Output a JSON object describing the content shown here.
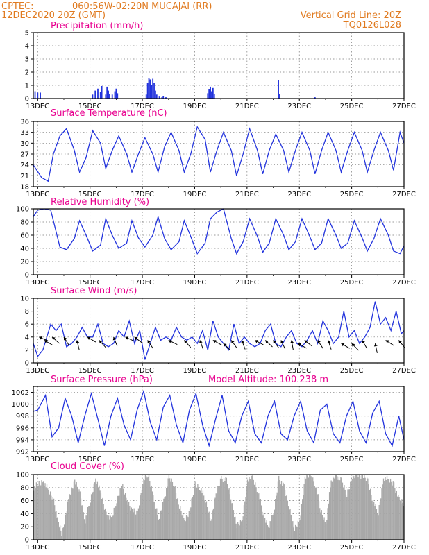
{
  "header": {
    "source": "CPTEC:",
    "location": "060:56W-02:20N  MUCAJAI (RR)",
    "datetime": "12DEC2020 20Z (GMT)",
    "grid_line": "Vertical Grid Line: 20Z",
    "model": "TQ0126L028"
  },
  "colors": {
    "header": "#e07a1f",
    "title": "#e8008f",
    "series": "#2233dd",
    "cloud": "#a8a8a8"
  },
  "x_axis": {
    "start_day": 12.833,
    "end_day": 27.0,
    "tick_days": [
      13,
      15,
      17,
      19,
      21,
      23,
      25,
      27
    ],
    "tick_labels": [
      "13DEC",
      "15DEC",
      "17DEC",
      "19DEC",
      "21DEC",
      "23DEC",
      "25DEC",
      "27DEC"
    ]
  },
  "chart_data": [
    {
      "type": "bar",
      "title": "Precipitation (mm/h)",
      "ylim": [
        0,
        5
      ],
      "yticks": [
        0,
        1,
        2,
        3,
        4,
        5
      ],
      "grid": true,
      "events": [
        [
          12.9,
          0.55
        ],
        [
          13.0,
          0.45
        ],
        [
          13.1,
          0.45
        ],
        [
          15.1,
          0.3
        ],
        [
          15.2,
          0.6
        ],
        [
          15.3,
          0.75
        ],
        [
          15.4,
          0.5
        ],
        [
          15.45,
          0.95
        ],
        [
          15.6,
          0.3
        ],
        [
          15.65,
          0.9
        ],
        [
          15.7,
          0.6
        ],
        [
          15.75,
          0.35
        ],
        [
          15.85,
          0.3
        ],
        [
          15.95,
          0.55
        ],
        [
          16.0,
          0.75
        ],
        [
          16.05,
          0.4
        ],
        [
          17.15,
          0.3
        ],
        [
          17.2,
          1.2
        ],
        [
          17.25,
          1.55
        ],
        [
          17.3,
          1.45
        ],
        [
          17.35,
          1.0
        ],
        [
          17.4,
          1.5
        ],
        [
          17.45,
          1.2
        ],
        [
          17.5,
          0.6
        ],
        [
          17.55,
          0.3
        ],
        [
          17.65,
          0.15
        ],
        [
          17.75,
          0.1
        ],
        [
          17.8,
          0.2
        ],
        [
          17.9,
          0.1
        ],
        [
          19.5,
          0.4
        ],
        [
          19.55,
          0.7
        ],
        [
          19.6,
          0.9
        ],
        [
          19.65,
          0.55
        ],
        [
          19.7,
          0.8
        ],
        [
          19.75,
          0.35
        ],
        [
          22.2,
          1.4
        ],
        [
          22.25,
          0.35
        ],
        [
          23.6,
          0.1
        ]
      ]
    },
    {
      "type": "line",
      "title": "Surface Temperature (nC)",
      "ylim": [
        18,
        36
      ],
      "yticks": [
        18,
        21,
        24,
        27,
        30,
        33,
        36
      ],
      "grid": true,
      "x": [
        12.833,
        13.15,
        13.4,
        13.6,
        13.85,
        14.1,
        14.4,
        14.6,
        14.85,
        15.1,
        15.4,
        15.6,
        15.85,
        16.1,
        16.4,
        16.6,
        16.85,
        17.1,
        17.4,
        17.6,
        17.85,
        18.1,
        18.4,
        18.6,
        18.85,
        19.1,
        19.4,
        19.6,
        19.85,
        20.1,
        20.4,
        20.6,
        20.85,
        21.1,
        21.4,
        21.6,
        21.85,
        22.1,
        22.4,
        22.6,
        22.85,
        23.1,
        23.4,
        23.6,
        23.85,
        24.1,
        24.4,
        24.6,
        24.85,
        25.1,
        25.4,
        25.6,
        25.85,
        26.1,
        26.4,
        26.6,
        26.85,
        27.0
      ],
      "values": [
        24,
        20.5,
        19.5,
        27,
        32,
        34,
        28,
        22,
        26,
        33.5,
        30,
        23,
        28,
        32,
        27,
        22,
        27,
        31.5,
        27,
        22,
        29,
        33,
        28,
        22,
        27,
        34.5,
        31,
        22,
        28,
        33,
        28,
        21,
        27,
        34,
        28,
        21.5,
        28,
        32.5,
        28,
        22,
        28,
        33,
        28,
        21.5,
        28,
        33,
        28,
        22,
        28,
        33,
        28,
        22,
        28,
        33,
        28,
        22.5,
        33,
        30
      ]
    },
    {
      "type": "line",
      "title": "Relative Humidity (%)",
      "ylim": [
        0,
        100
      ],
      "yticks": [
        0,
        20,
        40,
        60,
        80,
        100
      ],
      "grid": true,
      "x": [
        12.833,
        13.0,
        13.25,
        13.5,
        13.85,
        14.1,
        14.4,
        14.6,
        14.85,
        15.1,
        15.4,
        15.6,
        15.85,
        16.1,
        16.4,
        16.6,
        16.85,
        17.1,
        17.4,
        17.6,
        17.85,
        18.1,
        18.4,
        18.6,
        18.85,
        19.1,
        19.4,
        19.6,
        19.85,
        20.1,
        20.4,
        20.6,
        20.85,
        21.1,
        21.4,
        21.6,
        21.85,
        22.1,
        22.4,
        22.6,
        22.85,
        23.1,
        23.4,
        23.6,
        23.85,
        24.1,
        24.4,
        24.6,
        24.85,
        25.1,
        25.4,
        25.6,
        25.85,
        26.1,
        26.4,
        26.6,
        26.85,
        27.0
      ],
      "values": [
        88,
        98,
        100,
        98,
        42,
        38,
        55,
        82,
        60,
        36,
        45,
        85,
        60,
        40,
        48,
        82,
        56,
        42,
        60,
        88,
        55,
        38,
        50,
        82,
        58,
        32,
        48,
        85,
        95,
        100,
        55,
        32,
        50,
        85,
        58,
        34,
        48,
        85,
        60,
        38,
        50,
        85,
        58,
        38,
        48,
        85,
        60,
        40,
        48,
        82,
        56,
        36,
        55,
        85,
        60,
        36,
        32,
        44
      ]
    },
    {
      "type": "line",
      "title": "Surface Wind (m/s)",
      "ylim": [
        0,
        10
      ],
      "yticks": [
        0,
        2,
        4,
        6,
        8,
        10
      ],
      "grid": true,
      "x": [
        12.833,
        13.0,
        13.2,
        13.35,
        13.5,
        13.7,
        13.9,
        14.1,
        14.3,
        14.5,
        14.7,
        14.9,
        15.1,
        15.3,
        15.5,
        15.7,
        15.9,
        16.1,
        16.3,
        16.5,
        16.7,
        16.9,
        17.1,
        17.3,
        17.5,
        17.7,
        17.9,
        18.1,
        18.3,
        18.5,
        18.7,
        18.9,
        19.1,
        19.3,
        19.5,
        19.7,
        19.9,
        20.1,
        20.3,
        20.5,
        20.7,
        20.9,
        21.1,
        21.3,
        21.5,
        21.7,
        21.9,
        22.1,
        22.3,
        22.5,
        22.7,
        22.9,
        23.1,
        23.3,
        23.5,
        23.7,
        23.9,
        24.1,
        24.3,
        24.5,
        24.7,
        24.9,
        25.1,
        25.3,
        25.5,
        25.7,
        25.9,
        26.1,
        26.3,
        26.5,
        26.7,
        26.9,
        27.0
      ],
      "values": [
        3,
        1,
        2,
        4,
        6,
        5,
        6,
        2.5,
        3,
        4,
        5.5,
        4,
        4,
        6,
        3,
        2.5,
        3,
        5,
        4,
        6.5,
        3,
        5,
        0.5,
        3,
        5.5,
        3.5,
        4,
        3.5,
        5.5,
        4,
        3.5,
        4,
        3,
        5,
        2,
        6.5,
        4,
        3,
        2,
        6,
        3,
        4,
        3,
        2.5,
        3,
        5,
        6,
        3,
        2.5,
        4,
        5,
        3,
        2.5,
        3.5,
        5,
        3,
        6.5,
        5,
        3,
        4,
        8,
        4,
        5,
        3,
        4,
        5.5,
        9.5,
        6,
        7,
        5,
        8,
        4.5,
        5
      ],
      "arrows": [
        [
          13.05,
          4
        ],
        [
          13.25,
          3.5
        ],
        [
          13.55,
          4
        ],
        [
          14.0,
          4
        ],
        [
          14.5,
          3.5
        ],
        [
          14.9,
          4
        ],
        [
          15.35,
          3.5
        ],
        [
          15.9,
          4
        ],
        [
          16.35,
          4
        ],
        [
          16.7,
          4
        ],
        [
          17.2,
          3.5
        ],
        [
          18.0,
          3.5
        ],
        [
          18.6,
          3.5
        ],
        [
          19.2,
          3.5
        ],
        [
          19.7,
          3.5
        ],
        [
          20.1,
          3
        ],
        [
          20.4,
          3.5
        ],
        [
          20.8,
          3.5
        ],
        [
          21.3,
          3.5
        ],
        [
          21.7,
          3.5
        ],
        [
          22.0,
          3.5
        ],
        [
          22.3,
          3.5
        ],
        [
          22.7,
          3.5
        ],
        [
          22.95,
          3
        ],
        [
          23.2,
          3.5
        ],
        [
          23.7,
          3.5
        ],
        [
          24.1,
          3.5
        ],
        [
          24.6,
          3
        ],
        [
          25.0,
          3
        ],
        [
          25.4,
          3.5
        ],
        [
          25.9,
          3
        ],
        [
          26.3,
          3.5
        ],
        [
          26.8,
          3.5
        ]
      ]
    },
    {
      "type": "line",
      "title": "Surface Pressure (hPa)",
      "annotation": "Model Altitude: 100.238 m",
      "ylim": [
        992,
        1003
      ],
      "yticks": [
        992,
        994,
        996,
        998,
        1000,
        1002
      ],
      "grid": true,
      "x": [
        12.833,
        13.0,
        13.3,
        13.55,
        13.8,
        14.05,
        14.3,
        14.55,
        14.8,
        15.05,
        15.3,
        15.55,
        15.8,
        16.05,
        16.3,
        16.55,
        16.8,
        17.05,
        17.3,
        17.55,
        17.8,
        18.05,
        18.3,
        18.55,
        18.8,
        19.05,
        19.3,
        19.55,
        19.8,
        20.05,
        20.3,
        20.55,
        20.8,
        21.05,
        21.3,
        21.55,
        21.8,
        22.05,
        22.3,
        22.55,
        22.8,
        23.05,
        23.3,
        23.55,
        23.8,
        24.05,
        24.3,
        24.55,
        24.8,
        25.05,
        25.3,
        25.55,
        25.8,
        26.05,
        26.3,
        26.55,
        26.8,
        27.0
      ],
      "values": [
        998.8,
        999,
        1001.5,
        994.5,
        996,
        1001,
        998,
        993.5,
        998,
        1001.8,
        997.5,
        993,
        998,
        1001,
        996.5,
        994,
        999,
        1002.2,
        997,
        994,
        999.5,
        1001.5,
        996.5,
        993.5,
        999,
        1001.8,
        996.5,
        993,
        997.5,
        1001.5,
        995.5,
        993.5,
        998,
        1000.5,
        995,
        993.5,
        998,
        1000.5,
        995,
        994,
        998,
        1000.5,
        995.5,
        993.5,
        999,
        1000,
        995,
        993.5,
        998,
        1000.5,
        995.5,
        993.5,
        998.5,
        1000.5,
        995,
        993,
        998,
        994
      ]
    },
    {
      "type": "area",
      "title": "Cloud Cover (%)",
      "ylim": [
        0,
        100
      ],
      "yticks": [
        0,
        20,
        40,
        60,
        80,
        100
      ],
      "grid": true,
      "x": [
        12.833,
        13.0,
        13.2,
        13.4,
        13.6,
        13.75,
        13.9,
        14.0,
        14.2,
        14.4,
        14.6,
        14.8,
        15.0,
        15.2,
        15.4,
        15.6,
        15.8,
        16.0,
        16.2,
        16.4,
        16.6,
        16.8,
        17.0,
        17.2,
        17.4,
        17.6,
        17.8,
        18.0,
        18.2,
        18.4,
        18.6,
        18.8,
        19.0,
        19.2,
        19.4,
        19.6,
        19.8,
        20.0,
        20.2,
        20.4,
        20.6,
        20.8,
        21.0,
        21.2,
        21.4,
        21.6,
        21.8,
        22.0,
        22.2,
        22.4,
        22.6,
        22.8,
        23.0,
        23.2,
        23.4,
        23.6,
        23.8,
        24.0,
        24.2,
        24.4,
        24.6,
        24.8,
        25.0,
        25.2,
        25.4,
        25.6,
        25.8,
        26.0,
        26.2,
        26.4,
        26.6,
        26.8,
        27.0
      ],
      "values": [
        80,
        85,
        90,
        75,
        60,
        30,
        10,
        25,
        70,
        90,
        70,
        30,
        60,
        95,
        70,
        40,
        30,
        60,
        85,
        60,
        45,
        40,
        90,
        100,
        70,
        30,
        60,
        95,
        85,
        50,
        30,
        45,
        85,
        80,
        60,
        30,
        70,
        95,
        90,
        60,
        20,
        30,
        90,
        95,
        75,
        40,
        20,
        40,
        95,
        80,
        50,
        15,
        30,
        95,
        100,
        85,
        45,
        25,
        90,
        100,
        90,
        70,
        95,
        100,
        98,
        90,
        60,
        40,
        95,
        92,
        85,
        60,
        55
      ]
    }
  ]
}
